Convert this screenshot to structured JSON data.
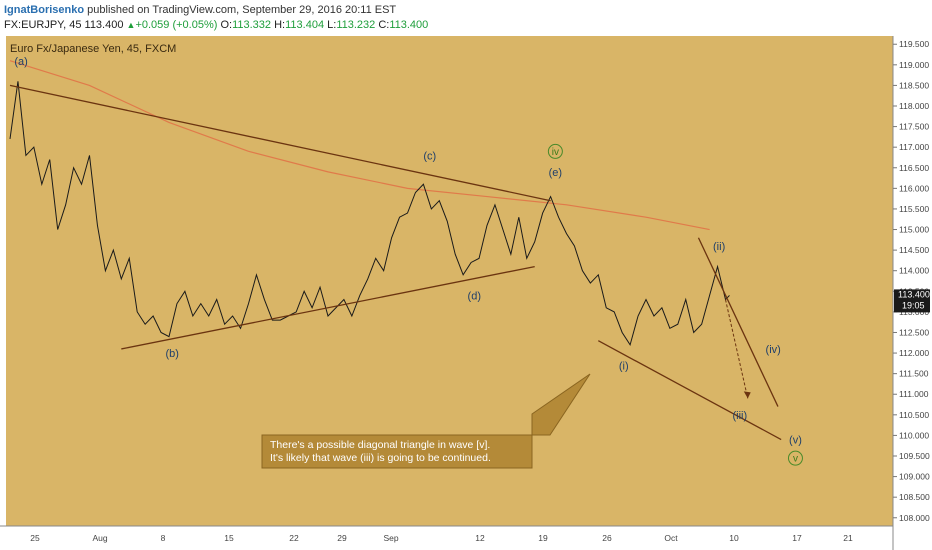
{
  "header": {
    "author": "IgnatBorisenko",
    "published_text": "published on TradingView.com, September 29, 2016 20:11 EST",
    "symbol": "FX:EURJPY, 45",
    "last": "113.400",
    "change_arrow": "▲",
    "change": "+0.059 (+0.05%)",
    "open_label": "O:",
    "open": "113.332",
    "high_label": "H:",
    "high": "113.404",
    "low_label": "L:",
    "low": "113.232",
    "close_label": "C:",
    "close": "113.400"
  },
  "chart_data": {
    "type": "line",
    "title": "Euro Fx/Japanese Yen, 45, FXCM",
    "background": "#d9b567",
    "price_color": "#1a1a1a",
    "ma_color": "#e07a4a",
    "trendline_color": "#6b3410",
    "ylim": [
      107.8,
      119.7
    ],
    "y_ticks": [
      "119.500",
      "119.000",
      "118.500",
      "118.000",
      "117.500",
      "117.000",
      "116.500",
      "116.000",
      "115.500",
      "115.000",
      "114.500",
      "114.000",
      "113.500",
      "113.000",
      "112.500",
      "112.000",
      "111.500",
      "111.000",
      "110.500",
      "110.000",
      "109.500",
      "109.000",
      "108.500",
      "108.000"
    ],
    "x_ticks": [
      "25",
      "Aug",
      "8",
      "15",
      "22",
      "29",
      "Sep",
      "12",
      "19",
      "26",
      "Oct",
      "10",
      "17",
      "21"
    ],
    "price_series": {
      "name": "EURJPY",
      "points": [
        [
          0,
          117.2
        ],
        [
          0.5,
          118.6
        ],
        [
          1,
          116.8
        ],
        [
          1.5,
          117.0
        ],
        [
          2,
          116.1
        ],
        [
          2.5,
          116.7
        ],
        [
          3,
          115.0
        ],
        [
          3.5,
          115.6
        ],
        [
          4,
          116.5
        ],
        [
          4.5,
          116.1
        ],
        [
          5,
          116.8
        ],
        [
          5.5,
          115.1
        ],
        [
          6,
          114.0
        ],
        [
          6.5,
          114.5
        ],
        [
          7,
          113.8
        ],
        [
          7.5,
          114.3
        ],
        [
          8,
          113.0
        ],
        [
          8.5,
          112.7
        ],
        [
          9,
          112.9
        ],
        [
          9.5,
          112.5
        ],
        [
          10,
          112.4
        ],
        [
          10.5,
          113.2
        ],
        [
          11,
          113.5
        ],
        [
          11.5,
          112.9
        ],
        [
          12,
          113.2
        ],
        [
          12.5,
          112.9
        ],
        [
          13,
          113.3
        ],
        [
          13.5,
          112.7
        ],
        [
          14,
          112.9
        ],
        [
          14.5,
          112.6
        ],
        [
          15,
          113.2
        ],
        [
          15.5,
          113.9
        ],
        [
          16,
          113.3
        ],
        [
          16.5,
          112.8
        ],
        [
          17,
          112.8
        ],
        [
          17.5,
          112.9
        ],
        [
          18,
          113.0
        ],
        [
          18.5,
          113.5
        ],
        [
          19,
          113.1
        ],
        [
          19.5,
          113.6
        ],
        [
          20,
          112.9
        ],
        [
          20.5,
          113.1
        ],
        [
          21,
          113.3
        ],
        [
          21.5,
          112.9
        ],
        [
          22,
          113.4
        ],
        [
          22.5,
          113.8
        ],
        [
          23,
          114.3
        ],
        [
          23.5,
          114.0
        ],
        [
          24,
          114.8
        ],
        [
          24.5,
          115.3
        ],
        [
          25,
          115.4
        ],
        [
          25.5,
          115.9
        ],
        [
          26,
          116.1
        ],
        [
          26.5,
          115.5
        ],
        [
          27,
          115.7
        ],
        [
          27.5,
          115.2
        ],
        [
          28,
          114.4
        ],
        [
          28.5,
          113.9
        ],
        [
          29,
          114.2
        ],
        [
          29.5,
          114.3
        ],
        [
          30,
          115.1
        ],
        [
          30.5,
          115.6
        ],
        [
          31,
          115.0
        ],
        [
          31.5,
          114.4
        ],
        [
          32,
          115.3
        ],
        [
          32.5,
          114.3
        ],
        [
          33,
          114.7
        ],
        [
          33.5,
          115.4
        ],
        [
          34,
          115.8
        ],
        [
          34.5,
          115.3
        ],
        [
          35,
          114.9
        ],
        [
          35.5,
          114.6
        ],
        [
          36,
          114.0
        ],
        [
          36.5,
          113.7
        ],
        [
          37,
          113.9
        ],
        [
          37.5,
          113.1
        ],
        [
          38,
          113.0
        ],
        [
          38.5,
          112.5
        ],
        [
          39,
          112.2
        ],
        [
          39.5,
          112.9
        ],
        [
          40,
          113.3
        ],
        [
          40.5,
          112.9
        ],
        [
          41,
          113.1
        ],
        [
          41.5,
          112.6
        ],
        [
          42,
          112.7
        ],
        [
          42.5,
          113.3
        ],
        [
          43,
          112.5
        ],
        [
          43.5,
          112.7
        ],
        [
          44,
          113.4
        ],
        [
          44.5,
          114.1
        ],
        [
          45,
          113.3
        ],
        [
          45.25,
          113.4
        ]
      ]
    },
    "ma_series": {
      "name": "MA",
      "points": [
        [
          0,
          119.1
        ],
        [
          5,
          118.5
        ],
        [
          10,
          117.6
        ],
        [
          15,
          116.9
        ],
        [
          20,
          116.4
        ],
        [
          25,
          116.0
        ],
        [
          30,
          115.8
        ],
        [
          35,
          115.6
        ],
        [
          40,
          115.3
        ],
        [
          44,
          115.0
        ]
      ]
    },
    "trendlines": [
      {
        "from": [
          0,
          118.5
        ],
        "to": [
          34,
          115.7
        ]
      },
      {
        "from": [
          7,
          112.1
        ],
        "to": [
          33,
          114.1
        ]
      },
      {
        "from": [
          37,
          112.3
        ],
        "to": [
          48.5,
          109.9
        ]
      },
      {
        "from": [
          43.3,
          114.8
        ],
        "to": [
          48.3,
          110.7
        ]
      }
    ],
    "projection": {
      "from": [
        45.0,
        113.3
      ],
      "to": [
        46.4,
        110.9
      ]
    },
    "wave_labels": [
      {
        "text": "(a)",
        "x": 0.7,
        "price": 119.0,
        "circled": false
      },
      {
        "text": "(b)",
        "x": 10.2,
        "price": 111.9,
        "circled": false
      },
      {
        "text": "(c)",
        "x": 26.4,
        "price": 116.7,
        "circled": false
      },
      {
        "text": "(d)",
        "x": 29.2,
        "price": 113.3,
        "circled": false
      },
      {
        "text": "iv",
        "x": 34.3,
        "price": 116.8,
        "circled": true
      },
      {
        "text": "(e)",
        "x": 34.3,
        "price": 116.3,
        "circled": false
      },
      {
        "text": "(i)",
        "x": 38.6,
        "price": 111.6,
        "circled": false
      },
      {
        "text": "(ii)",
        "x": 44.6,
        "price": 114.5,
        "circled": false
      },
      {
        "text": "(iv)",
        "x": 48.0,
        "price": 112.0,
        "circled": false
      },
      {
        "text": "(iii)",
        "x": 45.9,
        "price": 110.4,
        "circled": false
      },
      {
        "text": "(v)",
        "x": 49.4,
        "price": 109.8,
        "circled": false
      },
      {
        "text": "v",
        "x": 49.4,
        "price": 109.35,
        "circled": true
      }
    ],
    "annotation": {
      "line1": "There's a possible diagonal triangle in wave [v].",
      "line2": "It's likely that wave (iii) is going to be continued."
    },
    "current_price": "113.400",
    "countdown": "19:05",
    "current_price_value": 113.4
  }
}
